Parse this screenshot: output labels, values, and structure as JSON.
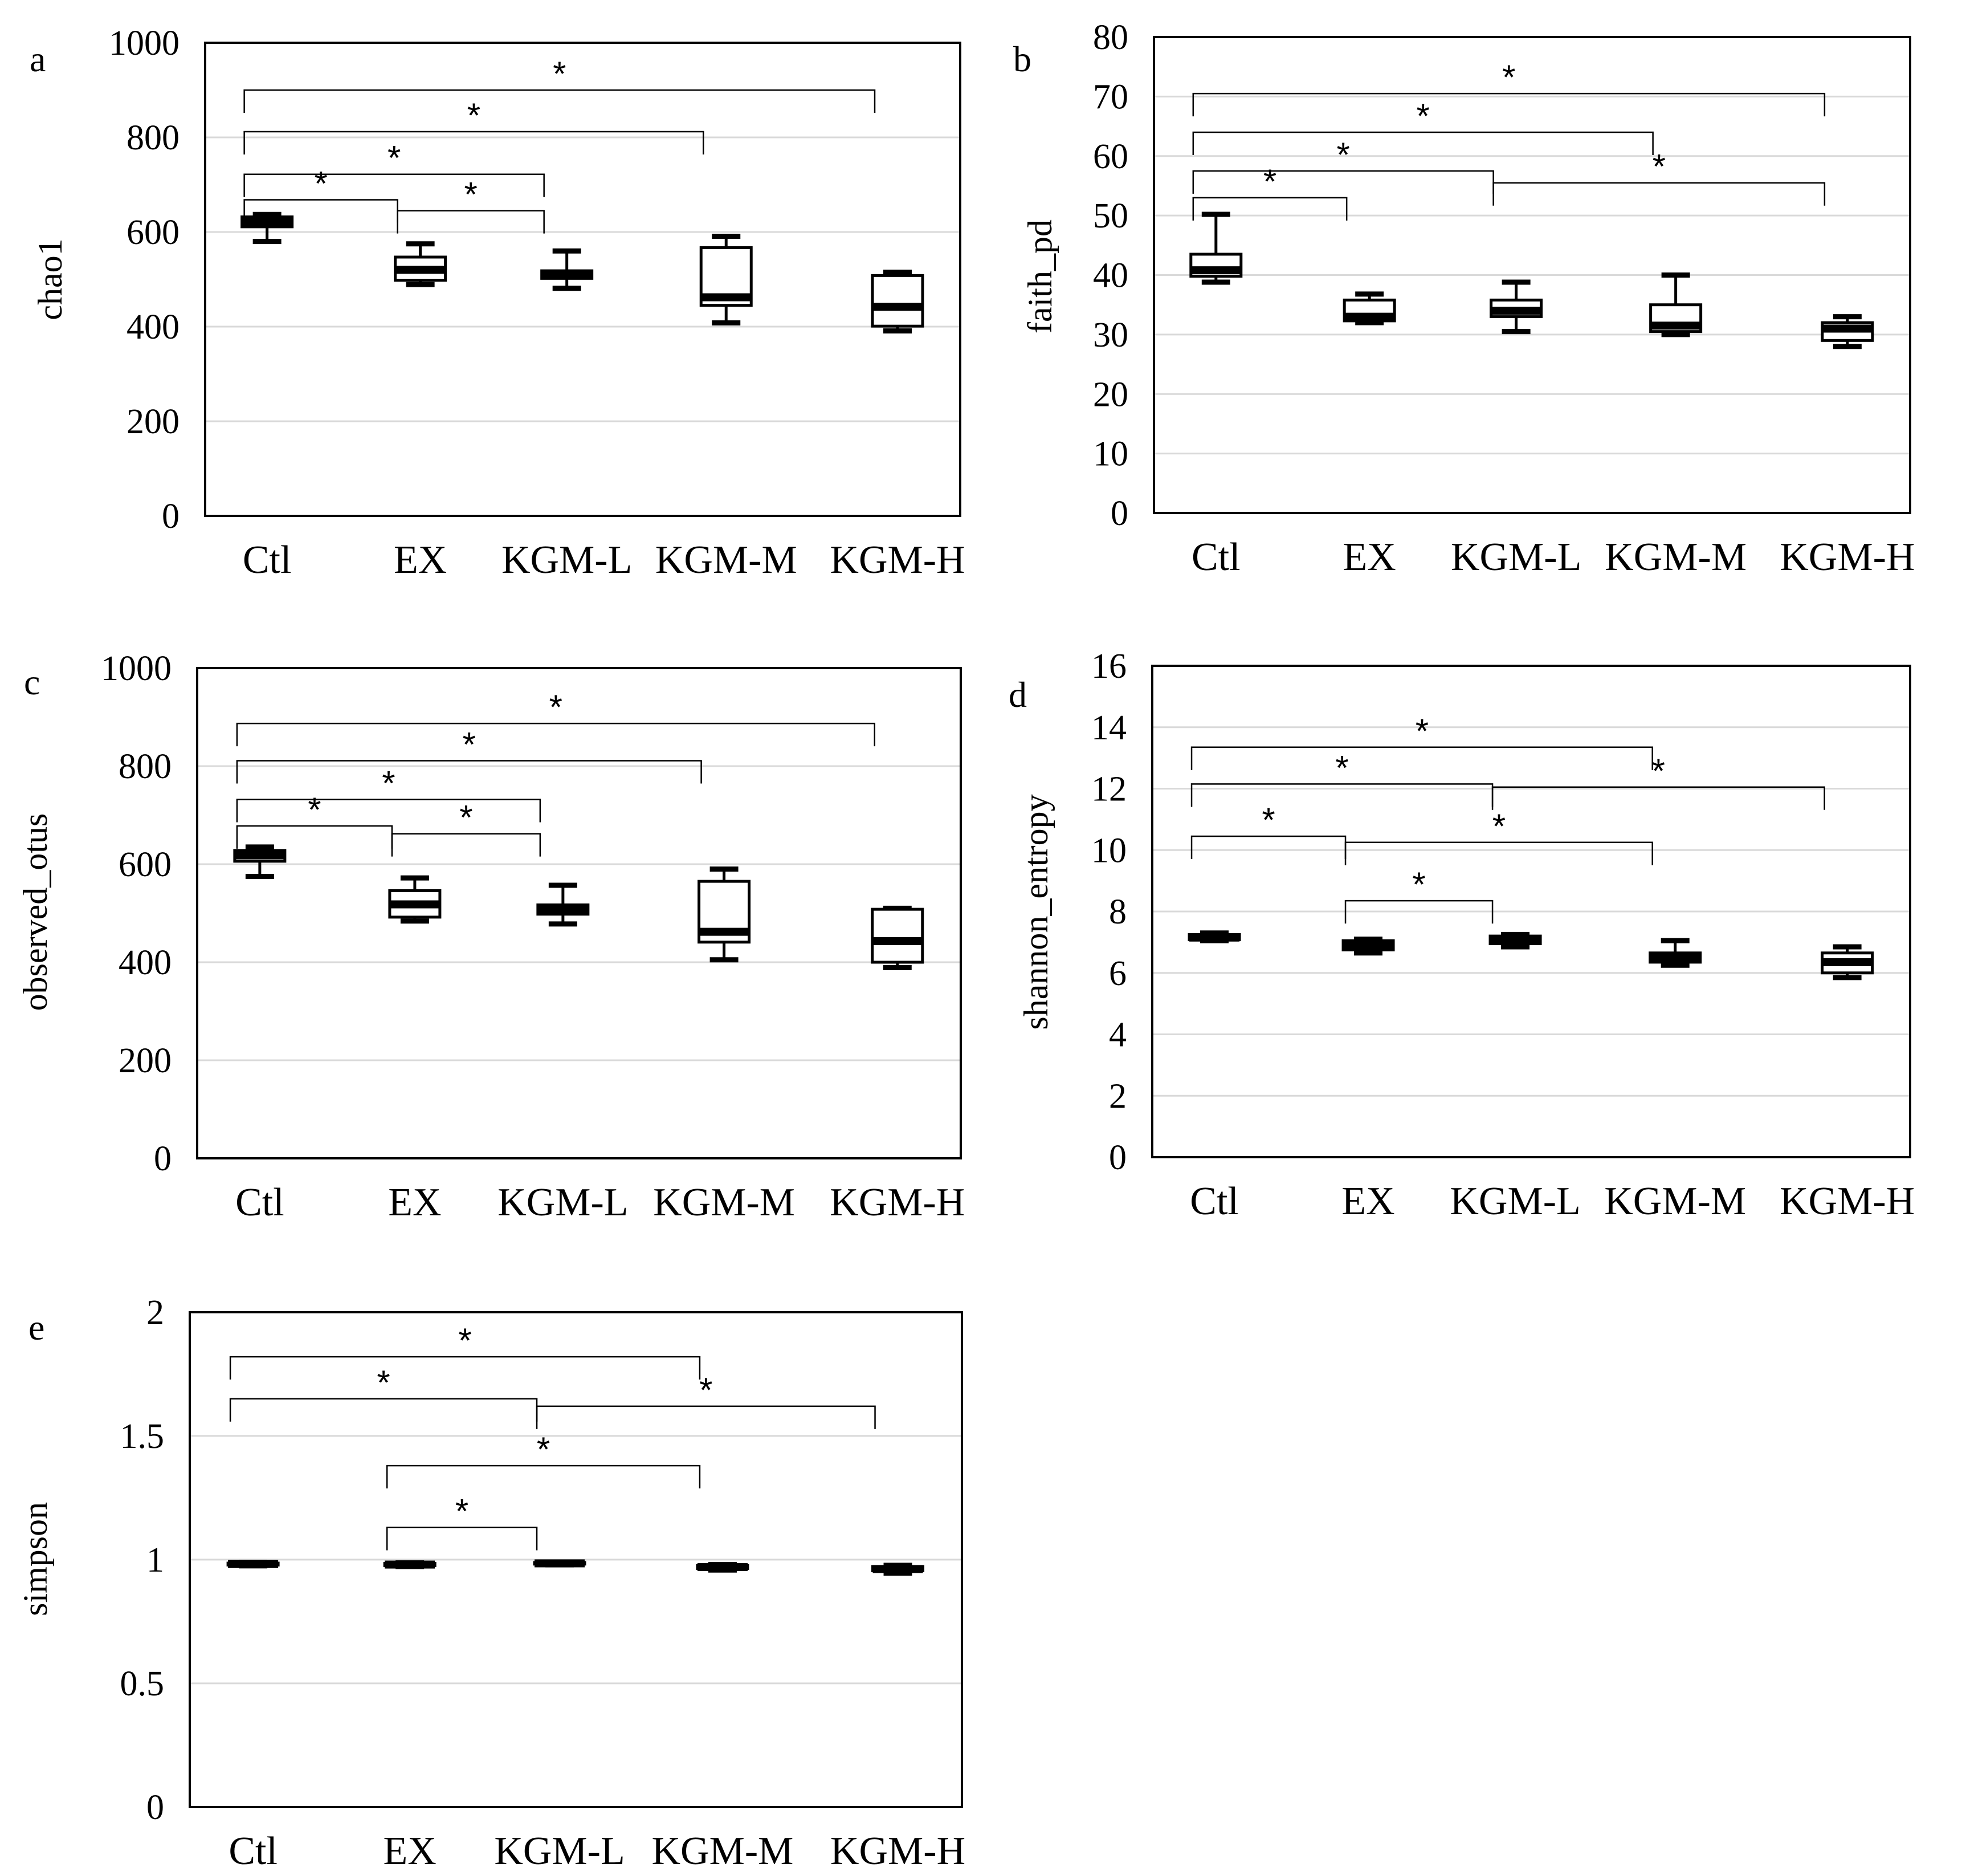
{
  "chart_data": [
    {
      "panel": "a",
      "type": "box",
      "ylabel": "chao1",
      "ylim": [
        0,
        1000
      ],
      "ystep": 200,
      "yticks": [
        "0",
        "200",
        "400",
        "600",
        "800",
        "1000"
      ],
      "categories": [
        "Ctl",
        "EX",
        "KGM-L",
        "KGM-M",
        "KGM-H"
      ],
      "boxes": [
        {
          "min": 580,
          "q1": 611,
          "median": 622,
          "q3": 632,
          "max": 637
        },
        {
          "min": 489,
          "q1": 498,
          "median": 520,
          "q3": 547,
          "max": 575
        },
        {
          "min": 481,
          "q1": 502,
          "median": 509,
          "q3": 518,
          "max": 560
        },
        {
          "min": 408,
          "q1": 445,
          "median": 462,
          "q3": 567,
          "max": 591
        },
        {
          "min": 391,
          "q1": 401,
          "median": 442,
          "q3": 508,
          "max": 515
        }
      ],
      "brackets": [
        {
          "from": 0,
          "to": 4,
          "level": 900,
          "label": "*"
        },
        {
          "from": 0,
          "to": 3,
          "level": 812,
          "label": "*"
        },
        {
          "from": 0,
          "to": 2,
          "level": 722,
          "label": "*"
        },
        {
          "from": 0,
          "to": 1,
          "level": 668,
          "label": "*"
        },
        {
          "from": 1,
          "to": 2,
          "level": 645,
          "label": "*"
        }
      ]
    },
    {
      "panel": "b",
      "type": "box",
      "ylabel": "faith_pd",
      "ylim": [
        0,
        80
      ],
      "ystep": 10,
      "yticks": [
        "0",
        "10",
        "20",
        "30",
        "40",
        "50",
        "60",
        "70",
        "80"
      ],
      "categories": [
        "Ctl",
        "EX",
        "KGM-L",
        "KGM-M",
        "KGM-H"
      ],
      "boxes": [
        {
          "min": 38.8,
          "q1": 39.8,
          "median": 40.8,
          "q3": 43.5,
          "max": 50.2
        },
        {
          "min": 32.0,
          "q1": 32.3,
          "median": 33.0,
          "q3": 35.8,
          "max": 36.8
        },
        {
          "min": 30.5,
          "q1": 33.0,
          "median": 34.0,
          "q3": 35.8,
          "max": 38.8
        },
        {
          "min": 30.0,
          "q1": 30.5,
          "median": 31.5,
          "q3": 35.0,
          "max": 40.0
        },
        {
          "min": 28.0,
          "q1": 29.0,
          "median": 31.0,
          "q3": 32.0,
          "max": 33.0
        }
      ],
      "brackets": [
        {
          "from": 0,
          "to": 4,
          "level": 70.5,
          "label": "*"
        },
        {
          "from": 0,
          "to": 3,
          "level": 64.0,
          "label": "*"
        },
        {
          "from": 0,
          "to": 2,
          "level": 57.5,
          "label": "*"
        },
        {
          "from": 0,
          "to": 1,
          "level": 53.0,
          "label": "*"
        },
        {
          "from": 2,
          "to": 4,
          "level": 55.5,
          "label": "*"
        }
      ]
    },
    {
      "panel": "c",
      "type": "box",
      "ylabel": "observed_otus",
      "ylim": [
        0,
        1000
      ],
      "ystep": 200,
      "yticks": [
        "0",
        "200",
        "400",
        "600",
        "800",
        "1000"
      ],
      "categories": [
        "Ctl",
        "EX",
        "KGM-L",
        "KGM-M",
        "KGM-H"
      ],
      "boxes": [
        {
          "min": 575,
          "q1": 606,
          "median": 618,
          "q3": 628,
          "max": 635
        },
        {
          "min": 484,
          "q1": 492,
          "median": 518,
          "q3": 546,
          "max": 572
        },
        {
          "min": 478,
          "q1": 498,
          "median": 508,
          "q3": 517,
          "max": 557
        },
        {
          "min": 405,
          "q1": 441,
          "median": 462,
          "q3": 565,
          "max": 590
        },
        {
          "min": 389,
          "q1": 400,
          "median": 443,
          "q3": 508,
          "max": 510
        }
      ],
      "brackets": [
        {
          "from": 0,
          "to": 4,
          "level": 887,
          "label": "*"
        },
        {
          "from": 0,
          "to": 3,
          "level": 811,
          "label": "*"
        },
        {
          "from": 0,
          "to": 2,
          "level": 732,
          "label": "*"
        },
        {
          "from": 0,
          "to": 1,
          "level": 678,
          "label": "*"
        },
        {
          "from": 1,
          "to": 2,
          "level": 662,
          "label": "*"
        }
      ]
    },
    {
      "panel": "d",
      "type": "box",
      "ylabel": "shannon_entropy",
      "ylim": [
        0,
        16
      ],
      "ystep": 2,
      "yticks": [
        "0",
        "2",
        "4",
        "6",
        "8",
        "10",
        "12",
        "14",
        "16"
      ],
      "categories": [
        "Ctl",
        "EX",
        "KGM-L",
        "KGM-M",
        "KGM-H"
      ],
      "boxes": [
        {
          "min": 7.05,
          "q1": 7.08,
          "median": 7.15,
          "q3": 7.25,
          "max": 7.3
        },
        {
          "min": 6.65,
          "q1": 6.75,
          "median": 6.9,
          "q3": 7.05,
          "max": 7.1
        },
        {
          "min": 6.85,
          "q1": 6.95,
          "median": 7.05,
          "q3": 7.2,
          "max": 7.25
        },
        {
          "min": 6.25,
          "q1": 6.35,
          "median": 6.5,
          "q3": 6.65,
          "max": 7.05
        },
        {
          "min": 5.85,
          "q1": 6.0,
          "median": 6.35,
          "q3": 6.65,
          "max": 6.85
        }
      ],
      "brackets": [
        {
          "from": 0,
          "to": 3,
          "level": 13.35,
          "label": "*"
        },
        {
          "from": 0,
          "to": 2,
          "level": 12.15,
          "label": "*"
        },
        {
          "from": 0,
          "to": 1,
          "level": 10.45,
          "label": "*"
        },
        {
          "from": 2,
          "to": 4,
          "level": 12.05,
          "label": "*"
        },
        {
          "from": 1,
          "to": 3,
          "level": 10.25,
          "label": "*"
        },
        {
          "from": 1,
          "to": 2,
          "level": 8.35,
          "label": "*"
        }
      ]
    },
    {
      "panel": "e",
      "type": "box",
      "ylabel": "simpson",
      "ylim": [
        0,
        2
      ],
      "ystep": 0.5,
      "yticks": [
        "0",
        "0.5",
        "1",
        "1.5",
        "2"
      ],
      "categories": [
        "Ctl",
        "EX",
        "KGM-L",
        "KGM-M",
        "KGM-H"
      ],
      "boxes": [
        {
          "min": 0.975,
          "q1": 0.978,
          "median": 0.982,
          "q3": 0.986,
          "max": 0.988
        },
        {
          "min": 0.972,
          "q1": 0.976,
          "median": 0.98,
          "q3": 0.985,
          "max": 0.987
        },
        {
          "min": 0.979,
          "q1": 0.982,
          "median": 0.985,
          "q3": 0.988,
          "max": 0.99
        },
        {
          "min": 0.958,
          "q1": 0.964,
          "median": 0.97,
          "q3": 0.976,
          "max": 0.98
        },
        {
          "min": 0.945,
          "q1": 0.955,
          "median": 0.962,
          "q3": 0.972,
          "max": 0.977
        }
      ],
      "brackets": [
        {
          "from": 0,
          "to": 3,
          "level": 1.82,
          "label": "*"
        },
        {
          "from": 0,
          "to": 2,
          "level": 1.65,
          "label": "*"
        },
        {
          "from": 2,
          "to": 4,
          "level": 1.62,
          "label": "*"
        },
        {
          "from": 1,
          "to": 3,
          "level": 1.38,
          "label": "*"
        },
        {
          "from": 1,
          "to": 2,
          "level": 1.13,
          "label": "*"
        }
      ]
    }
  ]
}
